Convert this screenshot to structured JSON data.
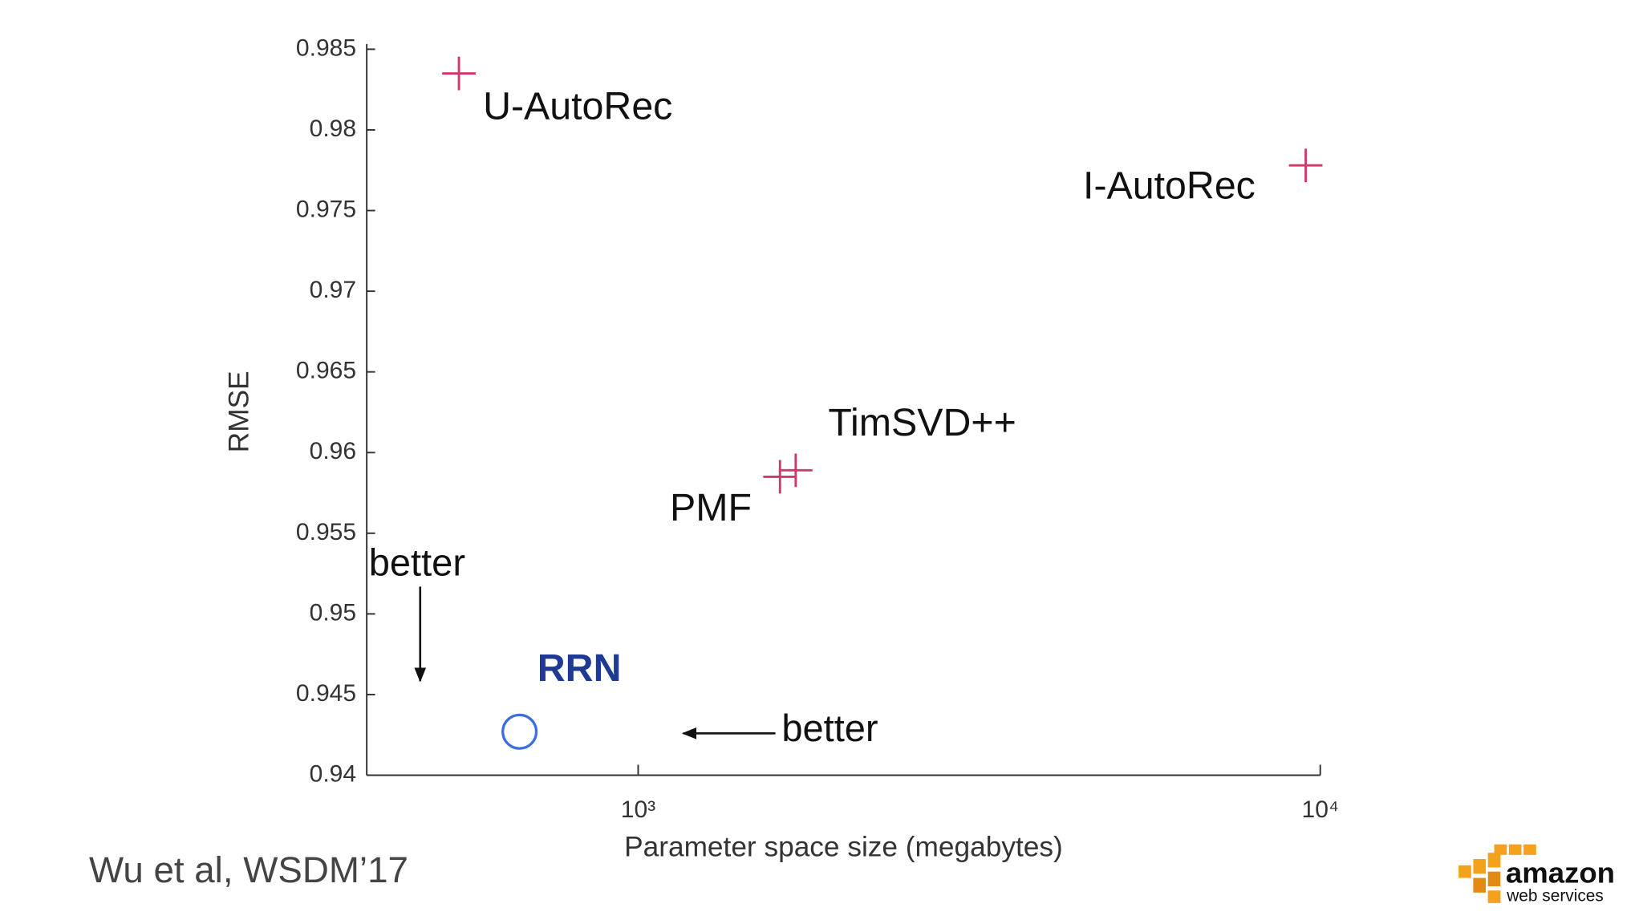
{
  "chart_data": {
    "type": "scatter",
    "x_label": "Parameter space size (megabytes)",
    "y_label": "RMSE",
    "x_log": true,
    "xlim": [
      400,
      10000
    ],
    "xticks": [
      {
        "value": 1000,
        "label": "10³"
      },
      {
        "value": 10000,
        "label": "10⁴"
      }
    ],
    "ylim": [
      0.94,
      0.985
    ],
    "yticks": [
      0.94,
      0.945,
      0.95,
      0.955,
      0.96,
      0.965,
      0.97,
      0.975,
      0.98,
      0.985
    ],
    "grid": false,
    "series": [
      {
        "name": "U-AutoRec",
        "color": "#d0386e",
        "marker": "plus",
        "x": [
          546
        ],
        "values": [
          0.9835
        ]
      },
      {
        "name": "I-AutoRec",
        "color": "#d0386e",
        "marker": "plus",
        "x": [
          9520
        ],
        "values": [
          0.9778
        ]
      },
      {
        "name": "TimSVD++",
        "color": "#d0386e",
        "marker": "plus",
        "x": [
          1702
        ],
        "values": [
          0.9589
        ]
      },
      {
        "name": "PMF",
        "color": "#d0386e",
        "marker": "plus",
        "x": [
          1614
        ],
        "values": [
          0.9585
        ]
      },
      {
        "name": "RRN",
        "color": "#3b6fe0",
        "marker": "circle",
        "label_color": "#1f3a93",
        "x": [
          670
        ],
        "values": [
          0.9427
        ]
      }
    ],
    "annotations": [
      "better",
      "better"
    ]
  },
  "footer": {
    "citation": "Wu et al, WSDM’17",
    "logo": [
      "amazon",
      "web services"
    ]
  }
}
